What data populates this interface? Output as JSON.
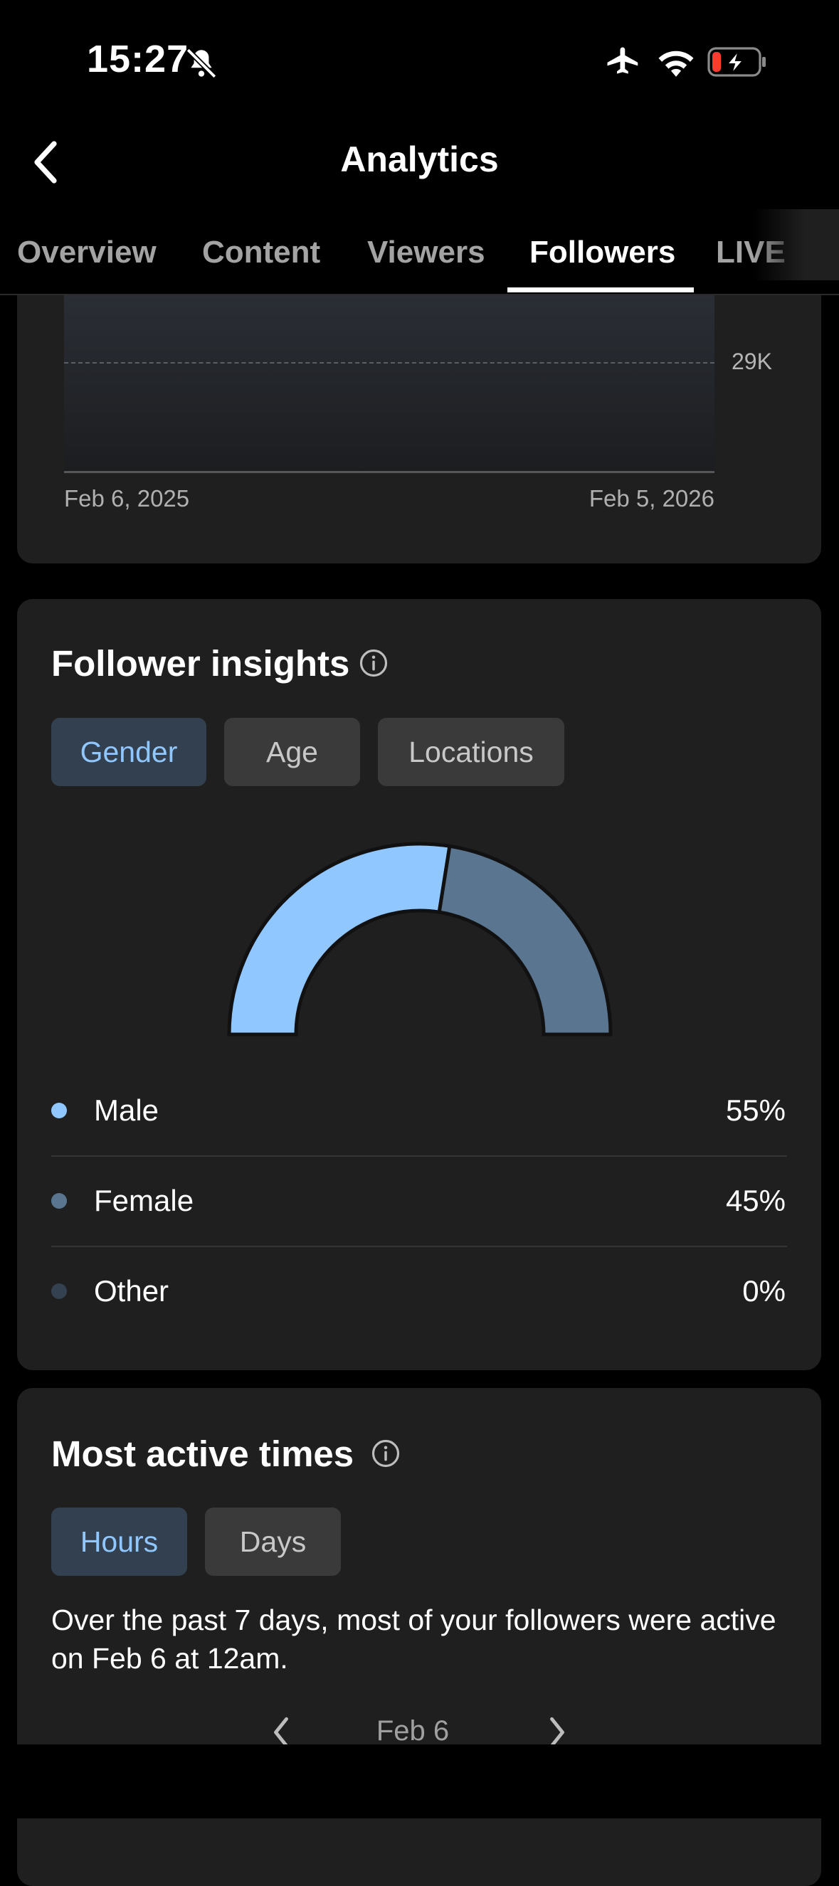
{
  "status_bar": {
    "time": "15:27",
    "icons": [
      "bell-slash-icon",
      "airplane-icon",
      "wifi-icon",
      "battery-charging-icon"
    ],
    "battery_color": "#ff3b30"
  },
  "header": {
    "title": "Analytics",
    "back_icon": "chevron-left-icon"
  },
  "tabs": [
    {
      "label": "Overview",
      "active": false
    },
    {
      "label": "Content",
      "active": false
    },
    {
      "label": "Viewers",
      "active": false
    },
    {
      "label": "Followers",
      "active": true
    },
    {
      "label": "LIVE",
      "active": false
    }
  ],
  "follower_chart": {
    "tick_label": "29K",
    "start_date": "Feb 6, 2025",
    "end_date": "Feb 5, 2026"
  },
  "follower_insights": {
    "title": "Follower insights",
    "filters": [
      {
        "label": "Gender",
        "active": true
      },
      {
        "label": "Age",
        "active": false
      },
      {
        "label": "Locations",
        "active": false
      }
    ],
    "legend": [
      {
        "label": "Male",
        "value": "55%",
        "color": "#90c7ff"
      },
      {
        "label": "Female",
        "value": "45%",
        "color": "#5a7590"
      },
      {
        "label": "Other",
        "value": "0%",
        "color": "#344150"
      }
    ]
  },
  "chart_data": {
    "type": "pie",
    "categories": [
      "Male",
      "Female",
      "Other"
    ],
    "values": [
      55,
      45,
      0
    ],
    "colors": [
      "#90c7ff",
      "#5a7590",
      "#344150"
    ]
  },
  "most_active_times": {
    "title": "Most active times",
    "filters": [
      {
        "label": "Hours",
        "active": true
      },
      {
        "label": "Days",
        "active": false
      }
    ],
    "description": "Over the past 7 days, most of your followers were active on Feb 6 at 12am.",
    "date_nav": {
      "label": "Feb 6"
    }
  },
  "colors": {
    "accent": "#90c7ff",
    "card_bg": "#1f1f1f",
    "pill_bg": "#3a3a3a",
    "pill_active_bg": "#33404f"
  }
}
